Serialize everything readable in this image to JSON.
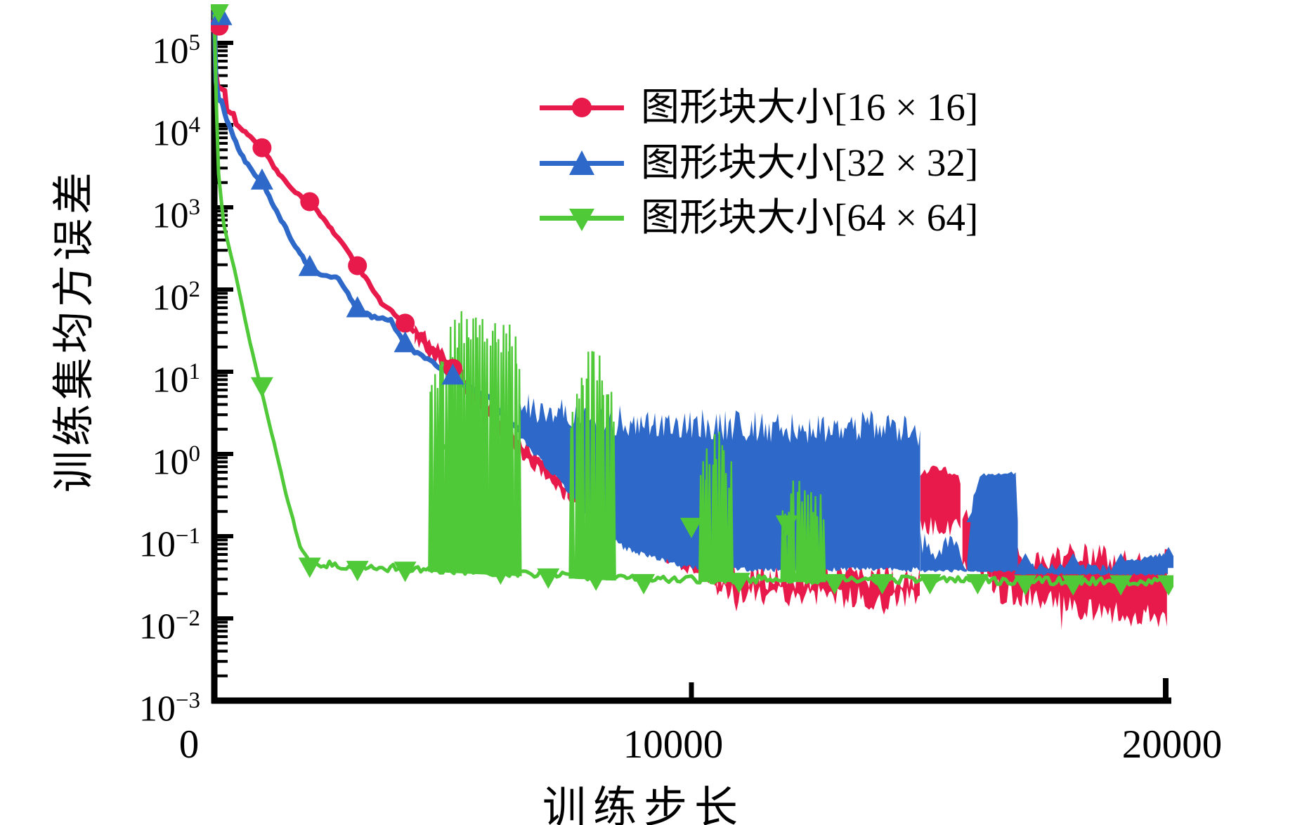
{
  "chart_data": {
    "type": "line",
    "title": "",
    "xlabel": "训练步长",
    "ylabel": "训练集均方误差",
    "x_range": [
      0,
      20000
    ],
    "y_scale": "log",
    "y_range_exp": [
      -3,
      5
    ],
    "x_ticks": [
      {
        "value": 0,
        "label": "0"
      },
      {
        "value": 10000,
        "label": "10000"
      },
      {
        "value": 20000,
        "label": "20000"
      }
    ],
    "y_log_exponents": [
      5,
      4,
      3,
      2,
      1,
      0,
      -1,
      -2,
      -3
    ],
    "grid": false,
    "legend_position": "upper-center",
    "legend": [
      {
        "label": "图形块大小[16 × 16]",
        "color": "#e81a4b",
        "marker": "circle"
      },
      {
        "label": "图形块大小[32 × 32]",
        "color": "#2e68c8",
        "marker": "triangle-up"
      },
      {
        "label": "图形块大小[64 × 64]",
        "color": "#4fc938",
        "marker": "triangle-down"
      }
    ],
    "series": [
      {
        "name": "图形块大小[16 × 16]",
        "color": "#e81a4b",
        "marker": "circle",
        "segments": [
          {
            "type": "line",
            "jitter": 0.015,
            "width": 7,
            "pts": [
              [
                0,
                260000
              ],
              [
                30,
                45000
              ],
              [
                80,
                29000
              ],
              [
                220,
                27000
              ],
              [
                260,
                15000
              ],
              [
                400,
                13500
              ],
              [
                460,
                10500
              ],
              [
                600,
                8500
              ],
              [
                800,
                7000
              ],
              [
                1000,
                5300
              ],
              [
                1300,
                2800
              ],
              [
                1700,
                1500
              ],
              [
                2000,
                1170
              ],
              [
                2400,
                600
              ],
              [
                2700,
                350
              ],
              [
                3000,
                195
              ],
              [
                3500,
                70
              ],
              [
                4000,
                39
              ],
              [
                4200,
                30
              ]
            ]
          },
          {
            "type": "band",
            "jt": 0.16,
            "jb": 0.16,
            "top": [
              [
                4200,
                45
              ],
              [
                5000,
                16
              ],
              [
                6000,
                3.2
              ],
              [
                7400,
                0.5
              ]
            ],
            "bot": [
              [
                4200,
                20
              ],
              [
                5000,
                7
              ],
              [
                6000,
                1.4
              ],
              [
                7400,
                0.25
              ]
            ]
          },
          {
            "type": "band",
            "jt": 0.14,
            "jb": 0.14,
            "top": [
              [
                7400,
                0.5
              ],
              [
                8500,
                0.17
              ],
              [
                9500,
                0.08
              ],
              [
                10600,
                0.05
              ]
            ],
            "bot": [
              [
                7400,
                0.26
              ],
              [
                8500,
                0.09
              ],
              [
                9500,
                0.045
              ],
              [
                10600,
                0.022
              ]
            ]
          },
          {
            "type": "band",
            "jt": 0.38,
            "jb": 0.3,
            "spike_p": 0.06,
            "spike_d": 0.28,
            "top": [
              [
                10500,
                0.055
              ],
              [
                12000,
                0.05
              ],
              [
                14800,
                0.048
              ]
            ],
            "bot": [
              [
                10500,
                0.016
              ],
              [
                12500,
                0.013
              ],
              [
                14800,
                0.012
              ]
            ]
          },
          {
            "type": "band",
            "jt": 0.12,
            "jb": 0.25,
            "top": [
              [
                14800,
                0.55
              ],
              [
                14950,
                0.75
              ],
              [
                15600,
                0.7
              ],
              [
                15680,
                0.35
              ]
            ],
            "bot": [
              [
                14800,
                0.1
              ],
              [
                15680,
                0.1
              ]
            ]
          },
          {
            "type": "band",
            "jt": 0.3,
            "jb": 0.2,
            "top": [
              [
                15680,
                0.3
              ],
              [
                16000,
                0.13
              ],
              [
                16300,
                0.1
              ]
            ],
            "bot": [
              [
                15680,
                0.034
              ],
              [
                16300,
                0.03
              ]
            ]
          },
          {
            "type": "band",
            "jt": 0.32,
            "jb": 0.32,
            "spike_p": 0.07,
            "spike_d": 0.3,
            "top": [
              [
                16300,
                0.09
              ],
              [
                17500,
                0.075
              ],
              [
                18200,
                0.09
              ],
              [
                19000,
                0.07
              ],
              [
                20000,
                0.07
              ]
            ],
            "bot": [
              [
                16300,
                0.015
              ],
              [
                17500,
                0.012
              ],
              [
                18500,
                0.008
              ],
              [
                20000,
                0.007
              ]
            ]
          }
        ],
        "markers": [
          [
            100,
            160000
          ],
          [
            1000,
            5300
          ],
          [
            2000,
            1170
          ],
          [
            3000,
            195
          ],
          [
            4000,
            39
          ],
          [
            5000,
            11
          ]
        ]
      },
      {
        "name": "图形块大小[32 × 32]",
        "color": "#2e68c8",
        "marker": "triangle-up",
        "segments": [
          {
            "type": "line",
            "jitter": 0.02,
            "width": 7,
            "pts": [
              [
                0,
                240000
              ],
              [
                35,
                32000
              ],
              [
                90,
                22000
              ],
              [
                150,
                19000
              ],
              [
                220,
                13500
              ],
              [
                300,
                10500
              ],
              [
                400,
                7400
              ],
              [
                550,
                4600
              ],
              [
                700,
                3300
              ],
              [
                1000,
                2000
              ],
              [
                1250,
                1050
              ],
              [
                1500,
                550
              ],
              [
                1750,
                300
              ],
              [
                2000,
                180
              ],
              [
                2300,
                145
              ],
              [
                2600,
                135
              ],
              [
                2800,
                90
              ],
              [
                3000,
                58
              ],
              [
                3300,
                46
              ],
              [
                3700,
                43
              ],
              [
                4000,
                21
              ],
              [
                4300,
                16
              ],
              [
                4700,
                11.5
              ],
              [
                5000,
                8.5
              ],
              [
                5400,
                6.2
              ],
              [
                5800,
                4.6
              ],
              [
                6100,
                2.6
              ],
              [
                6400,
                1.9
              ]
            ]
          },
          {
            "type": "band",
            "jt": 0.38,
            "jb": 0.07,
            "d": 2.5,
            "top": [
              [
                6400,
                6.5
              ],
              [
                7000,
                5
              ],
              [
                8000,
                4.2
              ],
              [
                9500,
                3.6
              ],
              [
                11000,
                3.4
              ],
              [
                12500,
                3.2
              ],
              [
                13800,
                3.6
              ],
              [
                14800,
                2.8
              ]
            ],
            "bot": [
              [
                6400,
                1.5
              ],
              [
                7000,
                0.6
              ],
              [
                8000,
                0.13
              ],
              [
                8600,
                0.065
              ],
              [
                9800,
                0.04
              ],
              [
                10500,
                0.036
              ],
              [
                14800,
                0.036
              ]
            ]
          },
          {
            "type": "band",
            "jt": 0.3,
            "jb": 0.04,
            "top": [
              [
                14800,
                0.13
              ],
              [
                15100,
                0.09
              ],
              [
                15450,
                0.13
              ],
              [
                15780,
                0.06
              ]
            ],
            "bot": [
              [
                14800,
                0.036
              ],
              [
                15780,
                0.036
              ]
            ]
          },
          {
            "type": "band",
            "jt": 0.05,
            "jb": 0.03,
            "top": [
              [
                15780,
                0.055
              ],
              [
                15900,
                0.3
              ],
              [
                16060,
                0.58
              ],
              [
                16400,
                0.6
              ],
              [
                16700,
                0.62
              ],
              [
                16830,
                0.6
              ],
              [
                16850,
                0.05
              ]
            ],
            "bot": [
              [
                15780,
                0.036
              ],
              [
                16850,
                0.036
              ]
            ]
          },
          {
            "type": "band",
            "jt": 0.1,
            "jb": 0.04,
            "top": [
              [
                16850,
                0.047
              ],
              [
                18800,
                0.047
              ],
              [
                19300,
                0.056
              ],
              [
                19600,
                0.066
              ],
              [
                20000,
                0.063
              ]
            ],
            "bot": [
              [
                16850,
                0.033
              ],
              [
                20000,
                0.033
              ]
            ]
          }
        ],
        "markers": [
          [
            140,
            200000
          ],
          [
            1000,
            2000
          ],
          [
            2000,
            178
          ],
          [
            3000,
            56
          ],
          [
            4000,
            21
          ],
          [
            5000,
            8.5
          ],
          [
            16000,
            0.18
          ],
          [
            17000,
            0.042
          ],
          [
            18000,
            0.042
          ],
          [
            19000,
            0.042
          ],
          [
            20000,
            0.05
          ]
        ]
      },
      {
        "name": "图形块大小[64 × 64]",
        "color": "#4fc938",
        "marker": "triangle-down",
        "base": [
          [
            2000,
            0.048
          ],
          [
            3000,
            0.042
          ],
          [
            4500,
            0.04
          ],
          [
            7000,
            0.034
          ],
          [
            9000,
            0.03
          ],
          [
            12000,
            0.03
          ],
          [
            16000,
            0.029
          ],
          [
            20000,
            0.028
          ]
        ],
        "segments": [
          {
            "type": "line",
            "jitter": 0.012,
            "width": 5,
            "pts": [
              [
                0,
                220000
              ],
              [
                40,
                20000
              ],
              [
                90,
                2500
              ],
              [
                200,
                600
              ],
              [
                420,
                180
              ],
              [
                700,
                30
              ],
              [
                950,
                7.2
              ],
              [
                1200,
                1.8
              ],
              [
                1500,
                0.33
              ],
              [
                1800,
                0.075
              ],
              [
                2000,
                0.048
              ]
            ]
          },
          {
            "type": "line",
            "jitter": 0.045,
            "width": 5,
            "pts": [
              [
                2000,
                0.048
              ],
              [
                3000,
                0.042
              ],
              [
                4500,
                0.04
              ],
              [
                7000,
                0.034
              ],
              [
                9000,
                0.03
              ],
              [
                12000,
                0.03
              ],
              [
                16000,
                0.029
              ],
              [
                20000,
                0.028
              ]
            ]
          },
          {
            "type": "spikes",
            "n": 40,
            "peaks": [
              [
                4500,
                9
              ],
              [
                4800,
                25
              ],
              [
                5100,
                55
              ],
              [
                5600,
                58
              ],
              [
                5900,
                40
              ],
              [
                6200,
                45
              ],
              [
                6420,
                18
              ]
            ]
          },
          {
            "type": "spikes",
            "n": 18,
            "peaks": [
              [
                7450,
                3
              ],
              [
                7700,
                17
              ],
              [
                8000,
                19
              ],
              [
                8200,
                12
              ],
              [
                8400,
                5
              ]
            ]
          },
          {
            "type": "spikes",
            "n": 14,
            "peaks": [
              [
                10170,
                0.5
              ],
              [
                10350,
                1.8
              ],
              [
                10600,
                1.9
              ],
              [
                10850,
                0.8
              ]
            ]
          },
          {
            "type": "spikes",
            "n": 16,
            "peaks": [
              [
                11900,
                0.2
              ],
              [
                12100,
                0.5
              ],
              [
                12400,
                0.55
              ],
              [
                12700,
                0.35
              ],
              [
                12800,
                0.2
              ]
            ]
          }
        ],
        "markers": [
          [
            90,
            260000
          ],
          [
            1000,
            7.2
          ],
          [
            2000,
            0.046
          ],
          [
            3000,
            0.042
          ],
          [
            4000,
            0.041
          ],
          [
            5000,
            1.1
          ],
          [
            6000,
            0.038
          ],
          [
            7000,
            0.034
          ],
          [
            8000,
            0.032
          ],
          [
            9000,
            0.029
          ],
          [
            10000,
            0.14
          ],
          [
            11000,
            0.03
          ],
          [
            12000,
            0.15
          ],
          [
            13000,
            0.029
          ],
          [
            14000,
            0.029
          ],
          [
            15000,
            0.029
          ],
          [
            16000,
            0.029
          ],
          [
            17000,
            0.028
          ],
          [
            18000,
            0.028
          ],
          [
            19000,
            0.028
          ],
          [
            20000,
            0.028
          ]
        ]
      }
    ]
  }
}
